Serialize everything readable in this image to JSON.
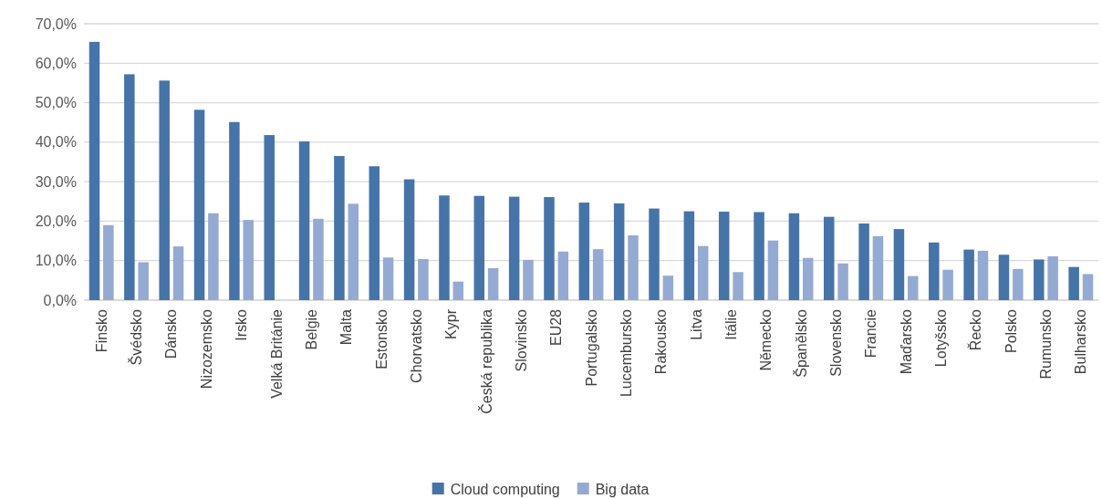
{
  "chart_data": {
    "type": "bar",
    "categories": [
      "Finsko",
      "Švédsko",
      "Dánsko",
      "Nizozemsko",
      "Irsko",
      "Velká Británie",
      "Belgie",
      "Malta",
      "Estonsko",
      "Chorvatsko",
      "Kypr",
      "Česká republika",
      "Slovinsko",
      "EU28",
      "Portugalsko",
      "Lucembursko",
      "Rakousko",
      "Litva",
      "Itálie",
      "Německo",
      "Španělsko",
      "Slovensko",
      "Francie",
      "Maďarsko",
      "Lotyšsko",
      "Řecko",
      "Polsko",
      "Rumunsko",
      "Bulharsko"
    ],
    "series": [
      {
        "name": "Cloud computing",
        "color": "#4674a8",
        "values": [
          65.4,
          57.2,
          55.6,
          48.2,
          45.1,
          41.8,
          40.2,
          36.5,
          33.9,
          30.6,
          26.5,
          26.4,
          26.2,
          26.1,
          24.7,
          24.5,
          23.2,
          22.5,
          22.4,
          22.3,
          22.0,
          21.1,
          19.4,
          18.0,
          14.6,
          12.8,
          11.5,
          10.3,
          8.4
        ]
      },
      {
        "name": "Big data",
        "color": "#95aad2",
        "values": [
          19.0,
          9.6,
          13.6,
          22.0,
          20.3,
          null,
          20.6,
          24.4,
          10.8,
          10.4,
          4.7,
          8.1,
          10.2,
          12.3,
          12.9,
          16.4,
          6.2,
          13.7,
          7.1,
          15.1,
          10.7,
          9.3,
          16.2,
          6.1,
          7.7,
          12.5,
          7.9,
          11.1,
          6.6
        ]
      }
    ],
    "ylim": [
      0,
      70
    ],
    "yticks": [
      {
        "value": 0,
        "label": "0,0%"
      },
      {
        "value": 10,
        "label": "10,0%"
      },
      {
        "value": 20,
        "label": "20,0%"
      },
      {
        "value": 30,
        "label": "30,0%"
      },
      {
        "value": 40,
        "label": "40,0%"
      },
      {
        "value": 50,
        "label": "50,0%"
      },
      {
        "value": 60,
        "label": "60,0%"
      },
      {
        "value": 70,
        "label": "70,0%"
      }
    ],
    "grid": "y",
    "legend": "bottom"
  }
}
